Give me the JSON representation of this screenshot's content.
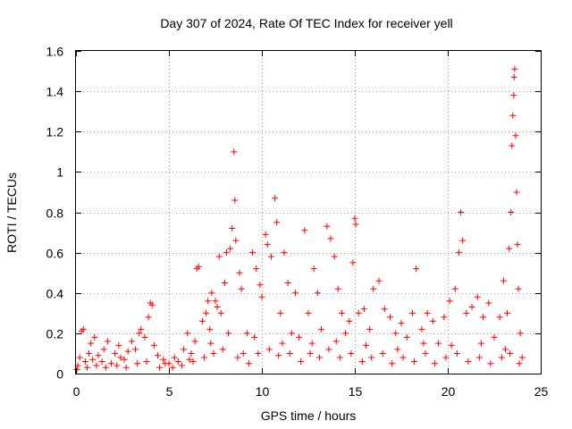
{
  "chart_data": {
    "type": "scatter",
    "title": "Day 307 of 2024, Rate Of TEC Index for receiver yell",
    "xlabel": "GPS time / hours",
    "ylabel": "ROTI / TECUs",
    "xlim": [
      0,
      25
    ],
    "ylim": [
      0,
      1.6
    ],
    "x_ticks": [
      0,
      5,
      10,
      15,
      20,
      25
    ],
    "y_ticks": [
      0,
      0.2,
      0.4,
      0.6,
      0.8,
      1,
      1.2,
      1.4,
      1.6
    ],
    "x_tick_labels": [
      "0",
      "5",
      "10",
      "15",
      "20",
      "25"
    ],
    "y_tick_labels": [
      "0",
      "0.2",
      "0.4",
      "0.6",
      "0.8",
      "1",
      "1.2",
      "1.4",
      "1.6"
    ],
    "grid": true,
    "marker": "plus",
    "color": "#ff0000",
    "series": [
      {
        "points": [
          [
            0.1,
            0.04
          ],
          [
            0.2,
            0.08
          ],
          [
            0.3,
            0.21
          ],
          [
            0.4,
            0.22
          ],
          [
            0.5,
            0.06
          ],
          [
            0.7,
            0.1
          ],
          [
            0.8,
            0.15
          ],
          [
            1.0,
            0.18
          ],
          [
            1.2,
            0.09
          ],
          [
            1.4,
            0.06
          ],
          [
            1.5,
            0.12
          ],
          [
            1.7,
            0.16
          ],
          [
            1.9,
            0.05
          ],
          [
            2.1,
            0.1
          ],
          [
            2.3,
            0.14
          ],
          [
            2.6,
            0.07
          ],
          [
            2.8,
            0.11
          ],
          [
            3.0,
            0.16
          ],
          [
            3.2,
            0.12
          ],
          [
            3.4,
            0.2
          ],
          [
            3.5,
            0.22
          ],
          [
            3.7,
            0.18
          ],
          [
            3.9,
            0.28
          ],
          [
            4.0,
            0.35
          ],
          [
            4.1,
            0.34
          ],
          [
            4.2,
            0.14
          ],
          [
            4.4,
            0.09
          ],
          [
            4.7,
            0.07
          ],
          [
            5.0,
            0.05
          ],
          [
            5.3,
            0.08
          ],
          [
            5.5,
            0.06
          ],
          [
            5.8,
            0.12
          ],
          [
            6.0,
            0.2
          ],
          [
            6.2,
            0.1
          ],
          [
            6.4,
            0.16
          ],
          [
            6.5,
            0.52
          ],
          [
            6.6,
            0.53
          ],
          [
            6.8,
            0.26
          ],
          [
            7.0,
            0.3
          ],
          [
            7.1,
            0.36
          ],
          [
            7.2,
            0.22
          ],
          [
            7.3,
            0.4
          ],
          [
            7.5,
            0.36
          ],
          [
            7.6,
            0.33
          ],
          [
            7.7,
            0.58
          ],
          [
            7.8,
            0.3
          ],
          [
            8.0,
            0.45
          ],
          [
            8.1,
            0.6
          ],
          [
            8.3,
            0.62
          ],
          [
            8.4,
            0.72
          ],
          [
            8.5,
            1.1
          ],
          [
            8.55,
            0.86
          ],
          [
            8.6,
            0.66
          ],
          [
            8.8,
            0.5
          ],
          [
            8.9,
            0.42
          ],
          [
            9.0,
            0.1
          ],
          [
            9.2,
            0.2
          ],
          [
            9.5,
            0.6
          ],
          [
            9.7,
            0.52
          ],
          [
            9.9,
            0.44
          ],
          [
            10.0,
            0.38
          ],
          [
            10.2,
            0.69
          ],
          [
            10.3,
            0.64
          ],
          [
            10.5,
            0.58
          ],
          [
            10.7,
            0.87
          ],
          [
            10.8,
            0.75
          ],
          [
            11.0,
            0.3
          ],
          [
            11.2,
            0.6
          ],
          [
            11.4,
            0.45
          ],
          [
            11.6,
            0.2
          ],
          [
            11.8,
            0.4
          ],
          [
            12.0,
            0.18
          ],
          [
            12.3,
            0.71
          ],
          [
            12.5,
            0.3
          ],
          [
            12.8,
            0.52
          ],
          [
            13.0,
            0.4
          ],
          [
            13.2,
            0.22
          ],
          [
            13.5,
            0.73
          ],
          [
            13.7,
            0.67
          ],
          [
            13.9,
            0.58
          ],
          [
            14.1,
            0.42
          ],
          [
            14.3,
            0.3
          ],
          [
            14.5,
            0.2
          ],
          [
            14.7,
            0.26
          ],
          [
            14.9,
            0.55
          ],
          [
            15.0,
            0.77
          ],
          [
            15.05,
            0.74
          ],
          [
            15.2,
            0.3
          ],
          [
            15.5,
            0.32
          ],
          [
            15.8,
            0.22
          ],
          [
            16.0,
            0.42
          ],
          [
            16.3,
            0.46
          ],
          [
            16.6,
            0.32
          ],
          [
            16.9,
            0.28
          ],
          [
            17.2,
            0.2
          ],
          [
            17.5,
            0.25
          ],
          [
            17.8,
            0.18
          ],
          [
            18.1,
            0.3
          ],
          [
            18.3,
            0.52
          ],
          [
            18.6,
            0.22
          ],
          [
            18.9,
            0.3
          ],
          [
            19.2,
            0.26
          ],
          [
            19.5,
            0.15
          ],
          [
            19.8,
            0.28
          ],
          [
            20.1,
            0.36
          ],
          [
            20.4,
            0.42
          ],
          [
            20.6,
            0.6
          ],
          [
            20.7,
            0.8
          ],
          [
            20.8,
            0.66
          ],
          [
            21.0,
            0.3
          ],
          [
            21.3,
            0.33
          ],
          [
            21.6,
            0.38
          ],
          [
            21.9,
            0.28
          ],
          [
            22.2,
            0.35
          ],
          [
            22.5,
            0.18
          ],
          [
            22.8,
            0.28
          ],
          [
            23.0,
            0.46
          ],
          [
            23.2,
            0.3
          ],
          [
            23.3,
            0.62
          ],
          [
            23.4,
            0.8
          ],
          [
            23.45,
            1.13
          ],
          [
            23.5,
            1.28
          ],
          [
            23.55,
            1.38
          ],
          [
            23.57,
            1.47
          ],
          [
            23.6,
            1.51
          ],
          [
            23.65,
            1.18
          ],
          [
            23.7,
            0.9
          ],
          [
            23.75,
            0.64
          ],
          [
            23.8,
            0.42
          ],
          [
            23.9,
            0.2
          ],
          [
            0.05,
            0.02
          ],
          [
            0.6,
            0.03
          ],
          [
            1.1,
            0.04
          ],
          [
            1.6,
            0.03
          ],
          [
            2.2,
            0.04
          ],
          [
            2.7,
            0.03
          ],
          [
            3.3,
            0.05
          ],
          [
            3.8,
            0.06
          ],
          [
            4.5,
            0.03
          ],
          [
            5.2,
            0.03
          ],
          [
            5.7,
            0.04
          ],
          [
            6.3,
            0.06
          ],
          [
            6.9,
            0.08
          ],
          [
            7.4,
            0.1
          ],
          [
            7.9,
            0.12
          ],
          [
            8.7,
            0.08
          ],
          [
            9.3,
            0.05
          ],
          [
            9.8,
            0.1
          ],
          [
            10.4,
            0.12
          ],
          [
            10.9,
            0.09
          ],
          [
            11.5,
            0.1
          ],
          [
            12.1,
            0.06
          ],
          [
            12.6,
            0.1
          ],
          [
            13.1,
            0.08
          ],
          [
            13.6,
            0.12
          ],
          [
            14.2,
            0.08
          ],
          [
            14.8,
            0.1
          ],
          [
            15.4,
            0.06
          ],
          [
            15.9,
            0.08
          ],
          [
            16.5,
            0.1
          ],
          [
            17.0,
            0.05
          ],
          [
            17.6,
            0.08
          ],
          [
            18.2,
            0.06
          ],
          [
            18.8,
            0.1
          ],
          [
            19.3,
            0.05
          ],
          [
            19.9,
            0.08
          ],
          [
            20.5,
            0.1
          ],
          [
            21.1,
            0.06
          ],
          [
            21.7,
            0.08
          ],
          [
            22.3,
            0.05
          ],
          [
            22.9,
            0.08
          ],
          [
            23.35,
            0.1
          ],
          [
            23.85,
            0.05
          ],
          [
            24.0,
            0.08
          ],
          [
            0.9,
            0.07
          ],
          [
            2.4,
            0.08
          ],
          [
            4.8,
            0.05
          ],
          [
            6.1,
            0.07
          ],
          [
            7.25,
            0.15
          ],
          [
            8.2,
            0.2
          ],
          [
            9.6,
            0.18
          ],
          [
            11.1,
            0.15
          ],
          [
            12.7,
            0.15
          ],
          [
            14.0,
            0.16
          ],
          [
            15.6,
            0.14
          ],
          [
            17.3,
            0.12
          ],
          [
            18.7,
            0.15
          ],
          [
            20.2,
            0.14
          ],
          [
            21.8,
            0.15
          ],
          [
            23.1,
            0.12
          ]
        ]
      }
    ]
  }
}
